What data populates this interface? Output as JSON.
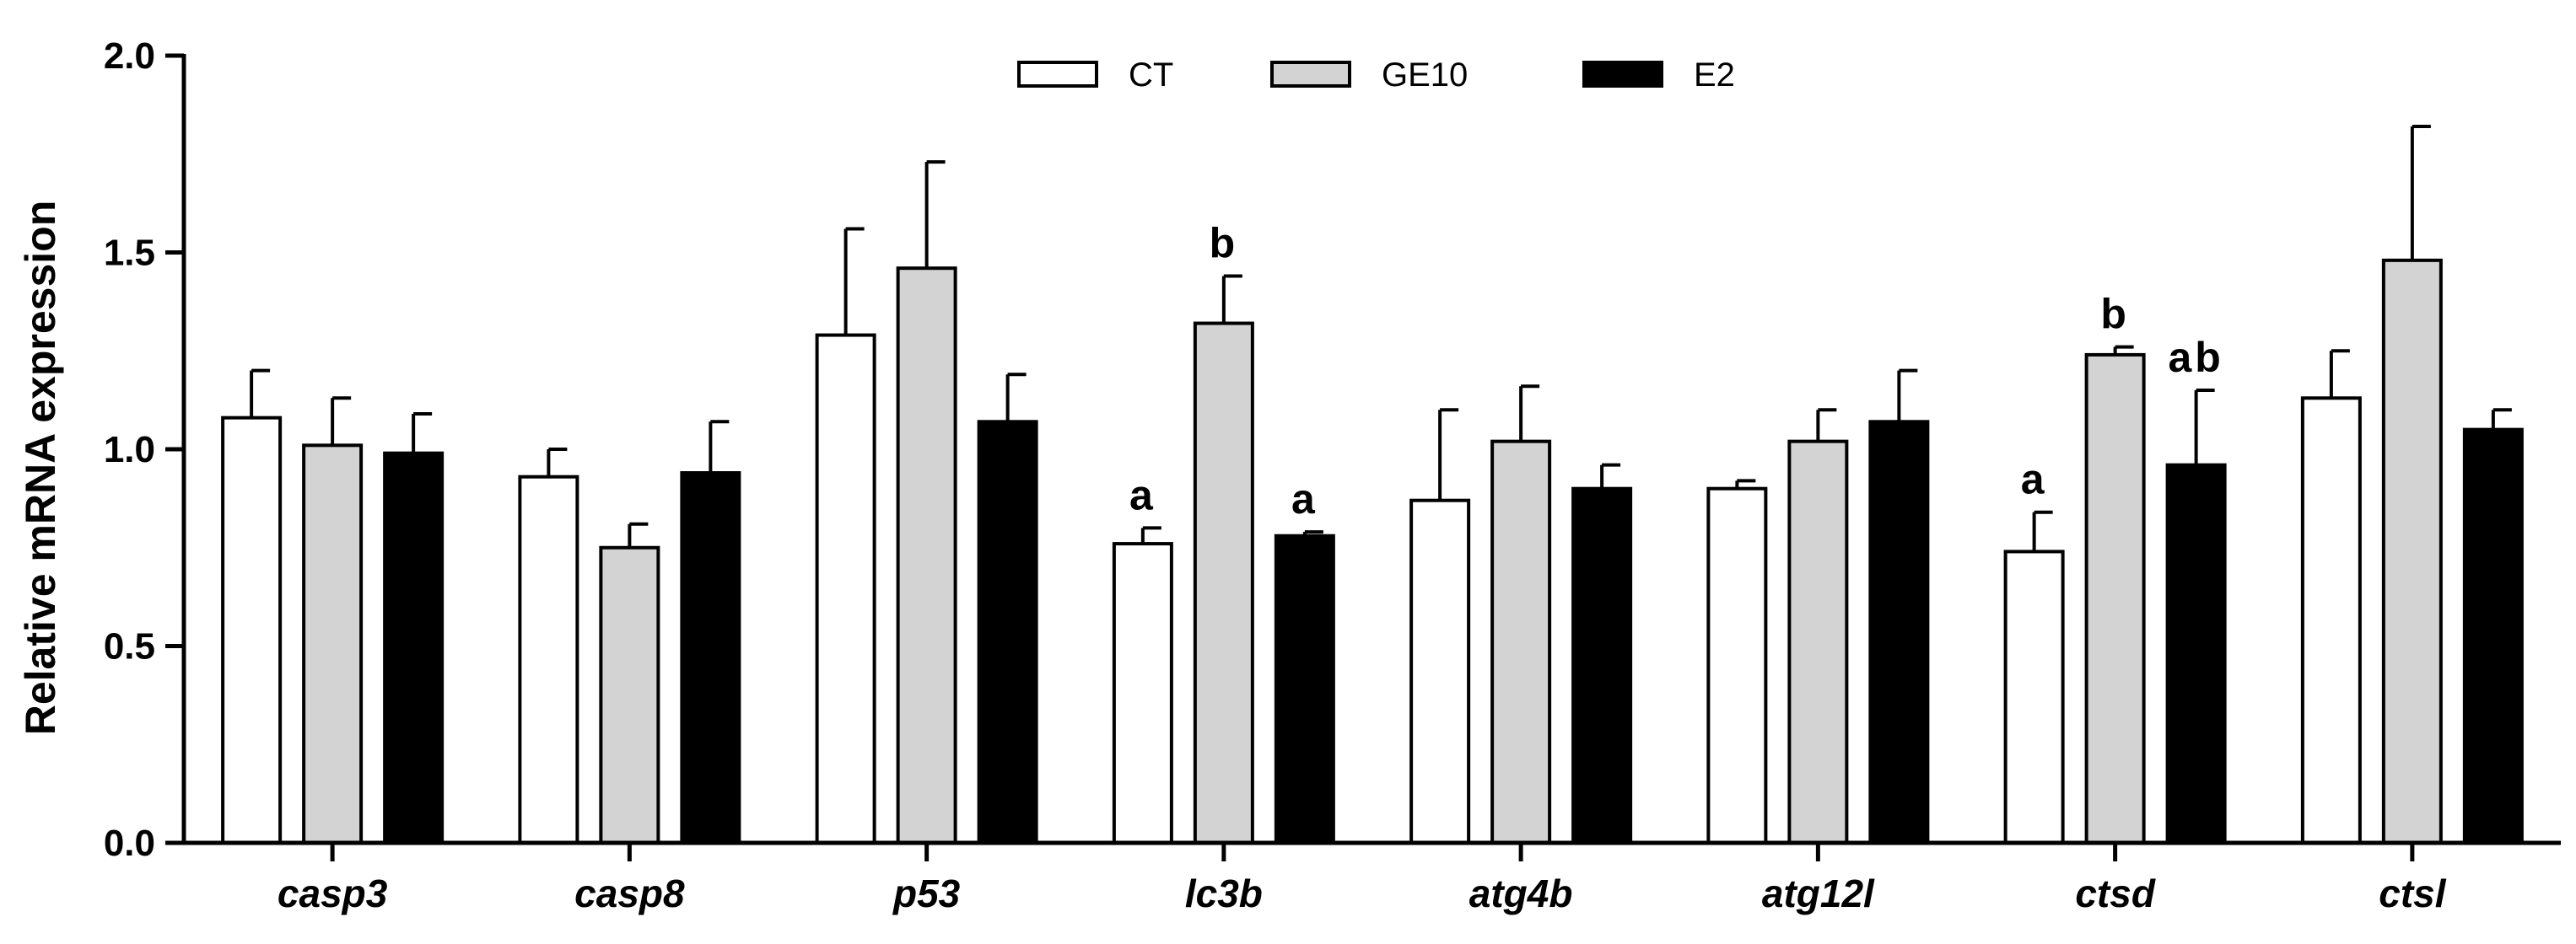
{
  "chart_data": {
    "type": "bar",
    "title": "",
    "xlabel": "",
    "ylabel": "Relative mRNA expression",
    "ylim": [
      0,
      2.0
    ],
    "yticks": [
      "0.0",
      "0.5",
      "1.0",
      "1.5",
      "2.0"
    ],
    "categories": [
      "casp3",
      "casp8",
      "p53",
      "lc3b",
      "atg4b",
      "atg12l",
      "ctsd",
      "ctsl"
    ],
    "legend_position": "top-center",
    "series": [
      {
        "name": "CT",
        "color": "#ffffff",
        "values": [
          1.08,
          0.93,
          1.29,
          0.76,
          0.87,
          0.9,
          0.74,
          1.13
        ],
        "errors": [
          0.12,
          0.07,
          0.27,
          0.04,
          0.23,
          0.02,
          0.1,
          0.12
        ],
        "labels": [
          "",
          "",
          "",
          "a",
          "",
          "",
          "a",
          ""
        ]
      },
      {
        "name": "GE10",
        "color": "#d3d3d3",
        "values": [
          1.01,
          0.75,
          1.46,
          1.32,
          1.02,
          1.02,
          1.24,
          1.48
        ],
        "errors": [
          0.12,
          0.06,
          0.27,
          0.12,
          0.14,
          0.08,
          0.02,
          0.34
        ],
        "labels": [
          "",
          "",
          "",
          "b",
          "",
          "",
          "b",
          ""
        ]
      },
      {
        "name": "E2",
        "color": "#000000",
        "values": [
          0.99,
          0.94,
          1.07,
          0.78,
          0.9,
          1.07,
          0.96,
          1.05
        ],
        "errors": [
          0.1,
          0.13,
          0.12,
          0.01,
          0.06,
          0.13,
          0.19,
          0.05
        ],
        "labels": [
          "",
          "",
          "",
          "a",
          "",
          "",
          "ab",
          ""
        ]
      }
    ]
  }
}
